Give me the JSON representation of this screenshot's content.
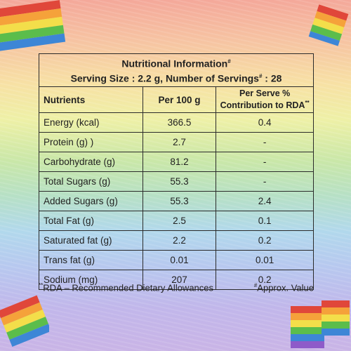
{
  "header": {
    "title": "Nutritional Information",
    "title_mark": "#",
    "serving_prefix": "Serving Size : 2.2 g, Number of Servings",
    "serving_mark": "#",
    "serving_suffix": " : 28"
  },
  "table": {
    "columns": {
      "nutrients": "Nutrients",
      "per100": "Per 100 g",
      "per_serve_line1": "Per Serve %",
      "per_serve_line2": "Contribution to RDA",
      "per_serve_mark": "**"
    },
    "rows": [
      {
        "name": "Energy (kcal)",
        "per100": "366.5",
        "rda": "0.4"
      },
      {
        "name": "Protein (g) )",
        "per100": "2.7",
        "rda": "-"
      },
      {
        "name": "Carbohydrate (g)",
        "per100": "81.2",
        "rda": "-"
      },
      {
        "name": "Total Sugars (g)",
        "per100": "55.3",
        "rda": "-"
      },
      {
        "name": "Added Sugars (g)",
        "per100": "55.3",
        "rda": "2.4"
      },
      {
        "name": "Total Fat (g)",
        "per100": "2.5",
        "rda": "0.1"
      },
      {
        "name": "Saturated fat (g)",
        "per100": "2.2",
        "rda": "0.2"
      },
      {
        "name": "Trans fat (g)",
        "per100": "0.01",
        "rda": "0.01"
      },
      {
        "name": "Sodium (mg)",
        "per100": "207",
        "rda": "0.2"
      }
    ]
  },
  "footnotes": {
    "rda_mark": "**",
    "rda_text": "RDA – Recommended Dietary Allowances",
    "approx_mark": "#",
    "approx_text": "Approx. Value"
  },
  "colors": {
    "text": "#222222",
    "border": "#2b2b2b"
  }
}
